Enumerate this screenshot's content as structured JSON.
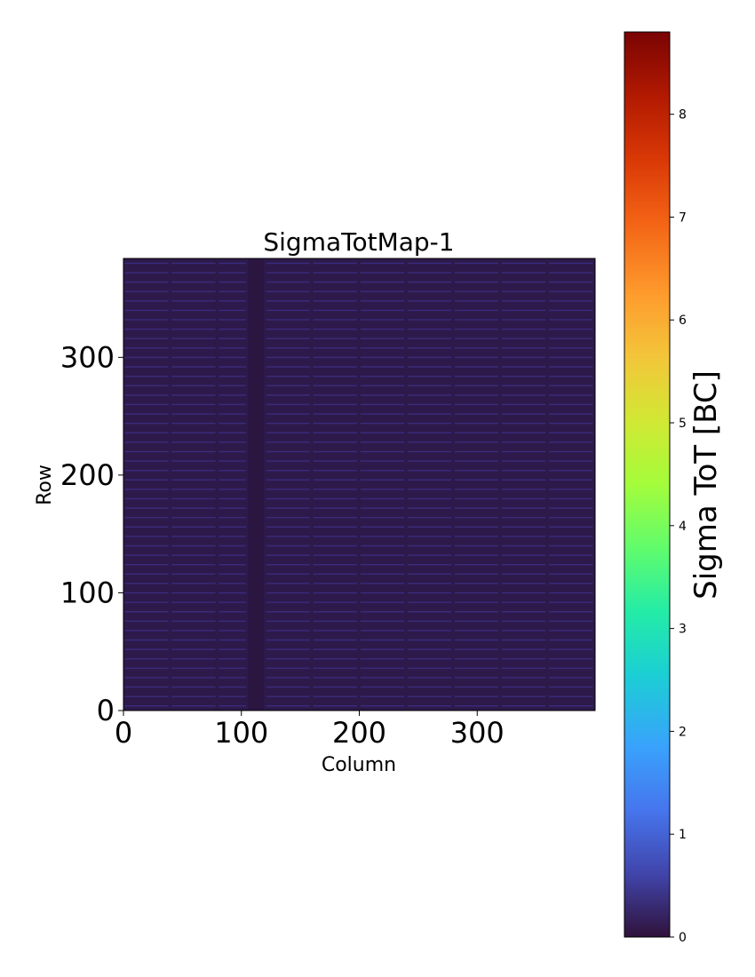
{
  "chart_data": {
    "type": "heatmap",
    "title": "SigmaTotMap-1",
    "xlabel": "Column",
    "ylabel": "Row",
    "xlim": [
      0,
      400
    ],
    "ylim": [
      0,
      384
    ],
    "xticks": [
      "0",
      "100",
      "200",
      "300"
    ],
    "yticks": [
      "0",
      "100",
      "200",
      "300"
    ],
    "colormap": "turbo",
    "colorbar": {
      "label": "Sigma ToT [BC]",
      "range": [
        0,
        8.8
      ],
      "ticks": [
        "0",
        "1",
        "2",
        "3",
        "4",
        "5",
        "6",
        "7",
        "8"
      ]
    },
    "background_value": 0.1,
    "stripe_value_typical": 0.8,
    "dark_column_band": [
      106,
      119
    ],
    "bright_column_bands": [
      [
        0,
        38
      ],
      [
        40,
        78
      ],
      [
        80,
        104
      ],
      [
        120,
        158
      ],
      [
        160,
        198
      ],
      [
        200,
        238
      ],
      [
        240,
        278
      ],
      [
        280,
        318
      ],
      [
        320,
        358
      ],
      [
        360,
        398
      ]
    ],
    "notes_values": {
      "row_pattern": "bright pixels every ~8 rows across most columns"
    }
  }
}
